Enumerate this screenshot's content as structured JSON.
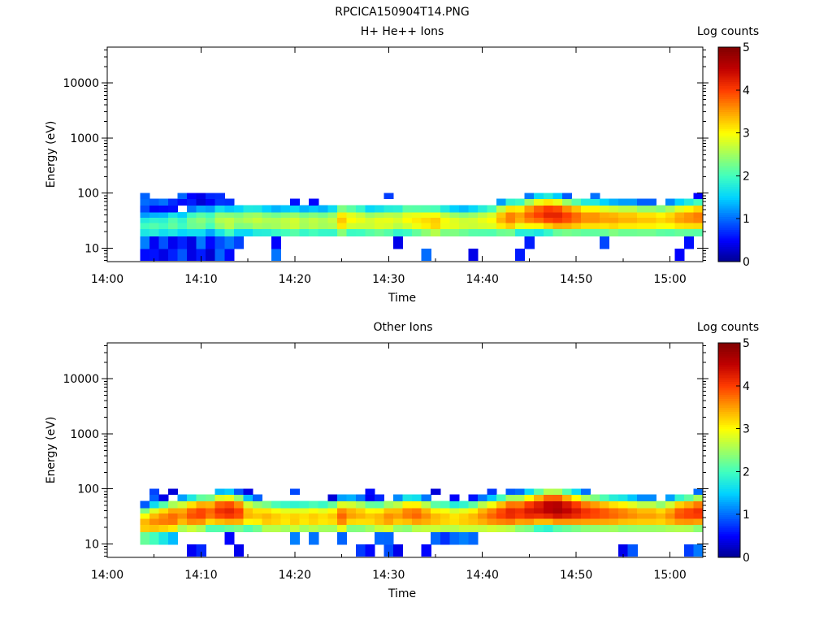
{
  "figure": {
    "title": "RPCICA150904T14.PNG"
  },
  "colors": {
    "colormap": [
      "#00008f",
      "#0000ff",
      "#006bff",
      "#00d4ff",
      "#40ffbf",
      "#a0ff60",
      "#ffff00",
      "#ffa000",
      "#ff3c00",
      "#c00000",
      "#800000"
    ]
  },
  "chart_data": [
    {
      "type": "heatmap",
      "title": "H+ He++ Ions",
      "xlabel": "Time",
      "ylabel": "Energy (eV)",
      "x_ticks": [
        "14:00",
        "14:10",
        "14:20",
        "14:30",
        "14:40",
        "14:50",
        "15:00"
      ],
      "x_range_minutes": [
        0,
        63.5
      ],
      "y_scale": "log",
      "y_ticks": [
        "10",
        "100",
        "1000",
        "10000"
      ],
      "y_range": [
        5.7,
        45000
      ],
      "colorbar": {
        "label": "Log counts",
        "range": [
          0,
          5
        ],
        "ticks": [
          "0",
          "1",
          "2",
          "3",
          "4",
          "5"
        ]
      },
      "time_start_minutes": 3.5,
      "time_step_minutes": 1,
      "energy_center_eV": [
        7,
        14,
        20,
        26,
        33,
        40,
        52,
        70,
        90
      ],
      "peak_energy_eV": [
        26,
        26,
        27,
        28,
        28,
        30,
        31,
        32,
        32,
        30,
        32,
        33,
        32,
        31,
        30,
        30,
        30,
        30,
        30,
        30,
        31,
        32,
        33,
        32,
        30,
        30,
        31,
        32,
        33,
        32,
        31,
        30,
        30,
        29,
        29,
        30,
        31,
        32,
        34,
        36,
        38,
        40,
        42,
        42,
        40,
        38,
        37,
        36,
        36,
        35,
        34,
        34,
        34,
        33,
        33,
        33,
        34,
        35,
        36,
        37
      ],
      "peak_log_counts": [
        2.0,
        2.1,
        2.0,
        2.2,
        2.0,
        2.3,
        2.4,
        2.2,
        2.6,
        2.7,
        2.5,
        2.6,
        2.7,
        2.6,
        2.6,
        2.7,
        2.8,
        2.6,
        2.7,
        2.6,
        2.7,
        3.3,
        3.0,
        2.9,
        2.8,
        2.9,
        2.9,
        2.8,
        3.0,
        3.1,
        3.2,
        3.3,
        3.0,
        2.9,
        2.8,
        2.8,
        2.9,
        3.0,
        3.4,
        3.7,
        3.5,
        3.8,
        4.0,
        4.2,
        4.2,
        4.0,
        3.8,
        3.6,
        3.6,
        3.5,
        3.5,
        3.4,
        3.4,
        3.3,
        3.3,
        3.2,
        3.3,
        3.5,
        3.6,
        3.7
      ]
    },
    {
      "type": "heatmap",
      "title": "Other Ions",
      "xlabel": "Time",
      "ylabel": "Energy (eV)",
      "x_ticks": [
        "14:00",
        "14:10",
        "14:20",
        "14:30",
        "14:40",
        "14:50",
        "15:00"
      ],
      "x_range_minutes": [
        0,
        63.5
      ],
      "y_scale": "log",
      "y_ticks": [
        "10",
        "100",
        "1000",
        "10000"
      ],
      "y_range": [
        5.7,
        45000
      ],
      "colorbar": {
        "label": "Log counts",
        "range": [
          0,
          5
        ],
        "ticks": [
          "0",
          "1",
          "2",
          "3",
          "4",
          "5"
        ]
      },
      "time_start_minutes": 3.5,
      "time_step_minutes": 1,
      "energy_center_eV": [
        7,
        14,
        20,
        26,
        33,
        40,
        52,
        70,
        90
      ],
      "peak_energy_eV": [
        24,
        26,
        28,
        30,
        33,
        34,
        36,
        38,
        40,
        40,
        38,
        35,
        33,
        31,
        30,
        30,
        29,
        30,
        30,
        30,
        31,
        32,
        34,
        33,
        31,
        30,
        31,
        33,
        35,
        34,
        32,
        30,
        30,
        29,
        29,
        30,
        32,
        33,
        35,
        37,
        38,
        40,
        43,
        45,
        44,
        42,
        40,
        38,
        37,
        36,
        35,
        35,
        34,
        33,
        33,
        32,
        33,
        35,
        36,
        38
      ],
      "peak_log_counts": [
        3.4,
        3.6,
        3.7,
        3.8,
        3.6,
        3.9,
        4.0,
        3.8,
        4.1,
        4.2,
        4.0,
        3.4,
        3.3,
        3.4,
        3.3,
        3.2,
        3.3,
        3.2,
        3.3,
        3.2,
        3.3,
        3.8,
        3.5,
        3.4,
        3.3,
        3.4,
        3.6,
        3.5,
        3.7,
        3.8,
        3.6,
        3.4,
        3.3,
        3.2,
        3.3,
        3.4,
        3.6,
        3.8,
        4.0,
        4.2,
        4.1,
        4.3,
        4.4,
        4.6,
        4.7,
        4.5,
        4.3,
        4.1,
        4.0,
        3.9,
        3.8,
        3.7,
        3.6,
        3.5,
        3.5,
        3.4,
        3.6,
        3.9,
        4.0,
        4.1
      ]
    }
  ]
}
